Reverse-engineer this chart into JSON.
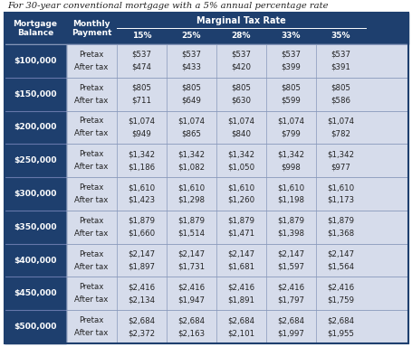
{
  "title": "For 30-year conventional mortgage with a 5% annual percentage rate",
  "header_bg": "#1e3f6e",
  "body_bg": "#d6dceb",
  "col1_bg": "#1e3f6e",
  "row_divider_color": "#8090b0",
  "marginal_header": "Marginal Tax Rate",
  "tax_rates": [
    "15%",
    "25%",
    "28%",
    "33%",
    "35%"
  ],
  "rows": [
    {
      "balance": "$100,000",
      "pretax": "$537",
      "after_tax": [
        "$474",
        "$433",
        "$420",
        "$399",
        "$391"
      ]
    },
    {
      "balance": "$150,000",
      "pretax": "$805",
      "after_tax": [
        "$711",
        "$649",
        "$630",
        "$599",
        "$586"
      ]
    },
    {
      "balance": "$200,000",
      "pretax": "$1,074",
      "after_tax": [
        "$949",
        "$865",
        "$840",
        "$799",
        "$782"
      ]
    },
    {
      "balance": "$250,000",
      "pretax": "$1,342",
      "after_tax": [
        "$1,186",
        "$1,082",
        "$1,050",
        "$998",
        "$977"
      ]
    },
    {
      "balance": "$300,000",
      "pretax": "$1,610",
      "after_tax": [
        "$1,423",
        "$1,298",
        "$1,260",
        "$1,198",
        "$1,173"
      ]
    },
    {
      "balance": "$350,000",
      "pretax": "$1,879",
      "after_tax": [
        "$1,660",
        "$1,514",
        "$1,471",
        "$1,398",
        "$1,368"
      ]
    },
    {
      "balance": "$400,000",
      "pretax": "$2,147",
      "after_tax": [
        "$1,897",
        "$1,731",
        "$1,681",
        "$1,597",
        "$1,564"
      ]
    },
    {
      "balance": "$450,000",
      "pretax": "$2,416",
      "after_tax": [
        "$2,134",
        "$1,947",
        "$1,891",
        "$1,797",
        "$1,759"
      ]
    },
    {
      "balance": "$500,000",
      "pretax": "$2,684",
      "after_tax": [
        "$2,372",
        "$2,163",
        "$2,101",
        "$1,997",
        "$1,955"
      ]
    }
  ]
}
